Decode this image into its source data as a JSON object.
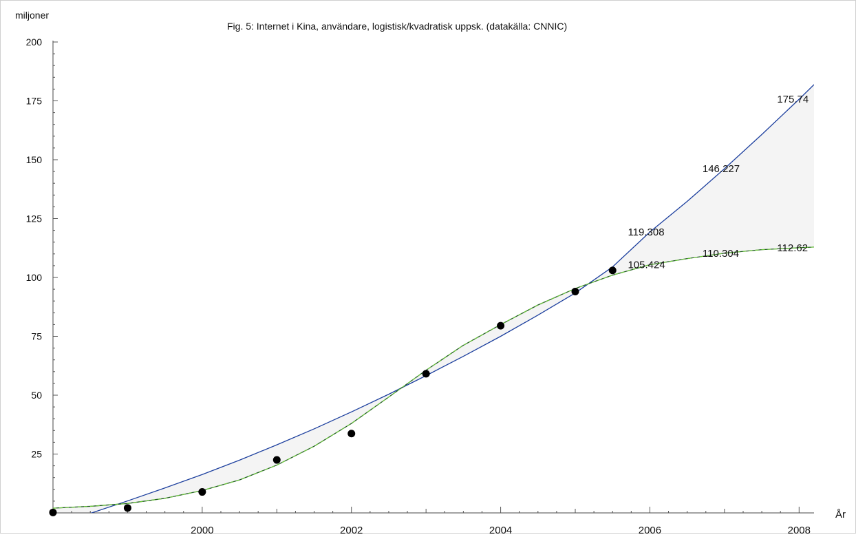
{
  "chart_data": {
    "type": "scatter",
    "title": "Fig. 5: Internet i Kina, användare, logistisk/kvadratisk uppsk. (datakälla: CNNIC)",
    "xlabel": "År",
    "ylabel": "miljoner",
    "xlim": [
      1998,
      2008.2
    ],
    "ylim": [
      0,
      200
    ],
    "x_ticks": [
      2000,
      2002,
      2004,
      2006,
      2008
    ],
    "y_ticks": [
      25,
      50,
      75,
      100,
      125,
      150,
      175,
      200
    ],
    "grid": false,
    "fill_between_curves": true,
    "series": [
      {
        "kind": "points",
        "x": [
          1998.0,
          1999.0,
          2000.0,
          2001.0,
          2002.0,
          2003.0,
          2004.0,
          2005.0,
          2005.5
        ],
        "y": [
          0.2,
          2.1,
          8.9,
          22.5,
          33.7,
          59.1,
          79.5,
          94.0,
          103.0
        ]
      },
      {
        "kind": "line",
        "style": "quadratic",
        "x": [
          1998.0,
          1998.5,
          1999.0,
          1999.5,
          2000.0,
          2000.5,
          2001.0,
          2001.5,
          2002.0,
          2002.5,
          2003.0,
          2003.5,
          2004.0,
          2004.5,
          2005.0,
          2005.5,
          2006.0,
          2006.5,
          2007.0,
          2007.5,
          2008.0,
          2008.2
        ],
        "y": [
          -6.0,
          -0.2,
          5.1,
          10.6,
          16.3,
          22.4,
          28.9,
          35.7,
          42.9,
          50.4,
          58.3,
          66.5,
          75.0,
          84.0,
          93.4,
          104.5,
          119.3,
          132.3,
          146.2,
          160.7,
          175.7,
          181.9
        ]
      },
      {
        "kind": "line",
        "style": "logistic",
        "x": [
          1998.0,
          1998.5,
          1999.0,
          1999.5,
          2000.0,
          2000.5,
          2001.0,
          2001.5,
          2002.0,
          2002.5,
          2003.0,
          2003.5,
          2004.0,
          2004.5,
          2005.0,
          2005.5,
          2006.0,
          2006.5,
          2007.0,
          2007.5,
          2008.0,
          2008.2
        ],
        "y": [
          2.0,
          2.8,
          4.0,
          6.2,
          9.5,
          14.0,
          20.3,
          28.3,
          38.0,
          49.2,
          60.6,
          71.2,
          80.0,
          88.3,
          95.3,
          101.0,
          105.4,
          108.0,
          110.3,
          111.8,
          112.6,
          112.9
        ]
      }
    ],
    "annotations": [
      {
        "x": 2006.0,
        "y": 119.308,
        "text": "119.308"
      },
      {
        "x": 2007.0,
        "y": 146.227,
        "text": "146.227"
      },
      {
        "x": 2008.0,
        "y": 175.74,
        "text": "175.74"
      },
      {
        "x": 2006.0,
        "y": 105.424,
        "text": "105.424"
      },
      {
        "x": 2007.0,
        "y": 110.304,
        "text": "110.304"
      },
      {
        "x": 2008.0,
        "y": 112.62,
        "text": "112.62"
      }
    ],
    "colors": {
      "quadratic": "#1c3f9e",
      "logistic": "#2e8b2e",
      "fill": "#f4f4f4",
      "points": "#000000"
    }
  }
}
